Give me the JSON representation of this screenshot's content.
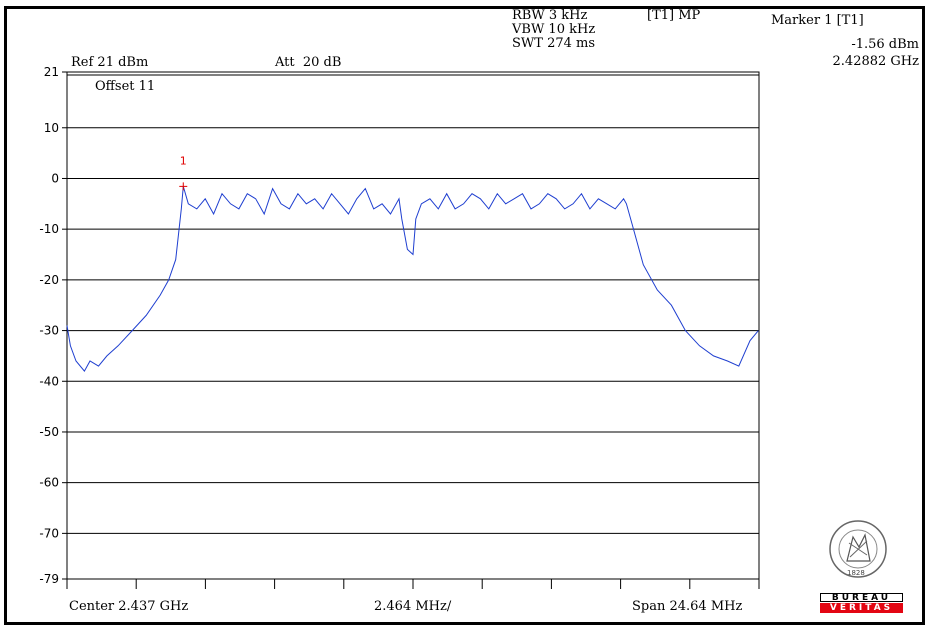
{
  "header": {
    "rbw": "RBW 3 kHz",
    "vbw": "VBW 10 kHz",
    "swt": "SWT 274 ms",
    "trace_mode": "[T1] MP",
    "ref": "Ref 21 dBm",
    "att": "Att  20 dB",
    "offset": "Offset 11"
  },
  "marker": {
    "title": "Marker 1 [T1]",
    "level": "-1.56 dBm",
    "freq": "2.42882 GHz",
    "number_label": "1",
    "color": "#e00000"
  },
  "footer": {
    "center": "Center 2.437 GHz",
    "per_div": "2.464 MHz/",
    "span": "Span 24.64 MHz"
  },
  "logo": {
    "top_text": "BUREAU",
    "bottom_text": "VERITAS",
    "year": "1828"
  },
  "chart_data": {
    "type": "line",
    "trace_color": "#1f3fd0",
    "x_unit": "GHz",
    "xlim": [
      2.42468,
      2.44932
    ],
    "ylim": [
      -79,
      21
    ],
    "y_ticks": [
      21,
      10,
      0,
      -10,
      -20,
      -30,
      -40,
      -50,
      -60,
      -70,
      -79
    ],
    "y_tick_labels": [
      "21",
      "10",
      "0",
      "-10",
      "-20",
      "-30",
      "-40",
      "-50",
      "-60",
      "-70",
      "-79"
    ],
    "x_divisions": 10,
    "grid": true,
    "series": [
      {
        "x": [
          2.42468,
          2.4248,
          2.425,
          2.4253,
          2.4255,
          2.4258,
          2.4261,
          2.4265,
          2.427,
          2.4275,
          2.428,
          2.4283,
          2.42855,
          2.42875,
          2.42882,
          2.429,
          2.4293,
          2.4296,
          2.4299,
          2.4302,
          2.4305,
          2.4308,
          2.4311,
          2.4314,
          2.4317,
          2.432,
          2.4323,
          2.4326,
          2.4329,
          2.4332,
          2.4335,
          2.4338,
          2.4341,
          2.4344,
          2.4347,
          2.435,
          2.4353,
          2.4356,
          2.4359,
          2.4362,
          2.4365,
          2.4366,
          2.4368,
          2.437,
          2.4371,
          2.4373,
          2.4376,
          2.4379,
          2.4382,
          2.4385,
          2.4388,
          2.4391,
          2.4394,
          2.4397,
          2.44,
          2.4403,
          2.4406,
          2.4409,
          2.4412,
          2.4415,
          2.4418,
          2.4421,
          2.4424,
          2.4427,
          2.443,
          2.4433,
          2.4436,
          2.4439,
          2.4442,
          2.4445,
          2.4446,
          2.4448,
          2.4452,
          2.4457,
          2.4462,
          2.4467,
          2.4472,
          2.4477,
          2.4482,
          2.4486,
          2.449,
          2.4493
        ],
        "y": [
          -29,
          -33,
          -36,
          -38,
          -36,
          -37,
          -35,
          -33,
          -30,
          -27,
          -23,
          -20,
          -16,
          -6,
          -1.56,
          -5,
          -6,
          -4,
          -7,
          -3,
          -5,
          -6,
          -3,
          -4,
          -7,
          -2,
          -5,
          -6,
          -3,
          -5,
          -4,
          -6,
          -3,
          -5,
          -7,
          -4,
          -2,
          -6,
          -5,
          -7,
          -4,
          -8,
          -14,
          -15,
          -8,
          -5,
          -4,
          -6,
          -3,
          -6,
          -5,
          -3,
          -4,
          -6,
          -3,
          -5,
          -4,
          -3,
          -6,
          -5,
          -3,
          -4,
          -6,
          -5,
          -3,
          -6,
          -4,
          -5,
          -6,
          -4,
          -5,
          -9,
          -17,
          -22,
          -25,
          -30,
          -33,
          -35,
          -36,
          -37,
          -32,
          -30
        ]
      }
    ]
  }
}
